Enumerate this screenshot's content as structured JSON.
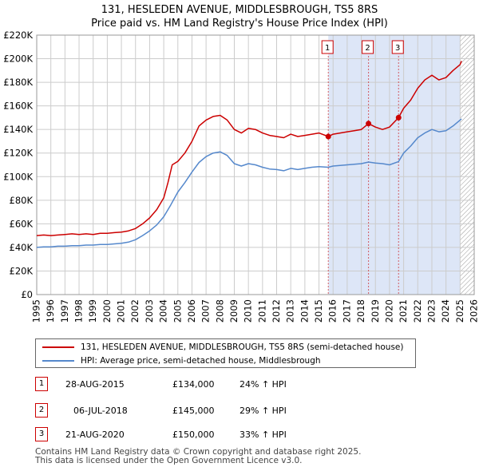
{
  "title_line1": "131, HESLEDEN AVENUE, MIDDLESBROUGH, TS5 8RS",
  "title_line2": "Price paid vs. HM Land Registry's House Price Index (HPI)",
  "colors": {
    "property": "#cc0000",
    "hpi": "#5588cc",
    "shade": "#dde6f7",
    "grid": "#cccccc"
  },
  "legend": {
    "property_label": "131, HESLEDEN AVENUE, MIDDLESBROUGH, TS5 8RS (semi-detached house)",
    "hpi_label": "HPI: Average price, semi-detached house, Middlesbrough"
  },
  "sales": [
    {
      "num": "1",
      "date": "28-AUG-2015",
      "price": "£134,000",
      "hpi_change": "24% ↑ HPI"
    },
    {
      "num": "2",
      "date": "06-JUL-2018",
      "price": "£145,000",
      "hpi_change": "29% ↑ HPI"
    },
    {
      "num": "3",
      "date": "21-AUG-2020",
      "price": "£150,000",
      "hpi_change": "33% ↑ HPI"
    }
  ],
  "footer_line1": "Contains HM Land Registry data © Crown copyright and database right 2025.",
  "footer_line2": "This data is licensed under the Open Government Licence v3.0.",
  "chart_data": {
    "type": "line",
    "title": "Price paid vs. HM Land Registry's House Price Index (HPI)",
    "xlim": [
      1995,
      2026
    ],
    "ylim": [
      0,
      220000
    ],
    "x_ticks": [
      "1995",
      "1996",
      "1997",
      "1998",
      "1999",
      "2000",
      "2001",
      "2002",
      "2003",
      "2004",
      "2005",
      "2006",
      "2007",
      "2008",
      "2009",
      "2010",
      "2011",
      "2012",
      "2013",
      "2014",
      "2015",
      "2016",
      "2017",
      "2018",
      "2019",
      "2020",
      "2021",
      "2022",
      "2023",
      "2024",
      "2025",
      "2026"
    ],
    "y_ticks": [
      {
        "value": 0,
        "label": "£0"
      },
      {
        "value": 20000,
        "label": "£20K"
      },
      {
        "value": 40000,
        "label": "£40K"
      },
      {
        "value": 60000,
        "label": "£60K"
      },
      {
        "value": 80000,
        "label": "£80K"
      },
      {
        "value": 100000,
        "label": "£100K"
      },
      {
        "value": 120000,
        "label": "£120K"
      },
      {
        "value": 140000,
        "label": "£140K"
      },
      {
        "value": 160000,
        "label": "£160K"
      },
      {
        "value": 180000,
        "label": "£180K"
      },
      {
        "value": 200000,
        "label": "£200K"
      },
      {
        "value": 220000,
        "label": "£220K"
      }
    ],
    "shaded_from": 2015.66,
    "hatched_from": 2025.0,
    "sale_markers": [
      {
        "num": "1",
        "x": 2015.66,
        "y": 134000
      },
      {
        "num": "2",
        "x": 2018.51,
        "y": 145000
      },
      {
        "num": "3",
        "x": 2020.64,
        "y": 150000
      }
    ],
    "series": [
      {
        "name": "131, HESLEDEN AVENUE, MIDDLESBROUGH, TS5 8RS (semi-detached house)",
        "color": "#cc0000",
        "points": [
          [
            1995.0,
            50000
          ],
          [
            1995.5,
            50500
          ],
          [
            1996.0,
            50000
          ],
          [
            1996.5,
            50500
          ],
          [
            1997.0,
            51000
          ],
          [
            1997.5,
            51500
          ],
          [
            1998.0,
            51000
          ],
          [
            1998.5,
            51500
          ],
          [
            1999.0,
            51000
          ],
          [
            1999.5,
            52000
          ],
          [
            2000.0,
            52000
          ],
          [
            2000.5,
            52500
          ],
          [
            2001.0,
            53000
          ],
          [
            2001.5,
            54000
          ],
          [
            2002.0,
            56000
          ],
          [
            2002.5,
            60000
          ],
          [
            2003.0,
            65000
          ],
          [
            2003.5,
            72000
          ],
          [
            2004.0,
            82000
          ],
          [
            2004.3,
            95000
          ],
          [
            2004.6,
            110000
          ],
          [
            2005.0,
            113000
          ],
          [
            2005.5,
            120000
          ],
          [
            2006.0,
            130000
          ],
          [
            2006.5,
            143000
          ],
          [
            2007.0,
            148000
          ],
          [
            2007.5,
            151000
          ],
          [
            2008.0,
            152000
          ],
          [
            2008.5,
            148000
          ],
          [
            2009.0,
            140000
          ],
          [
            2009.5,
            137000
          ],
          [
            2010.0,
            141000
          ],
          [
            2010.5,
            140000
          ],
          [
            2011.0,
            137000
          ],
          [
            2011.5,
            135000
          ],
          [
            2012.0,
            134000
          ],
          [
            2012.5,
            133000
          ],
          [
            2013.0,
            136000
          ],
          [
            2013.5,
            134000
          ],
          [
            2014.0,
            135000
          ],
          [
            2014.5,
            136000
          ],
          [
            2015.0,
            137000
          ],
          [
            2015.66,
            134000
          ],
          [
            2016.0,
            136000
          ],
          [
            2016.5,
            137000
          ],
          [
            2017.0,
            138000
          ],
          [
            2017.5,
            139000
          ],
          [
            2018.0,
            140000
          ],
          [
            2018.51,
            145000
          ],
          [
            2019.0,
            142000
          ],
          [
            2019.5,
            140000
          ],
          [
            2020.0,
            142000
          ],
          [
            2020.64,
            150000
          ],
          [
            2021.0,
            158000
          ],
          [
            2021.5,
            165000
          ],
          [
            2022.0,
            175000
          ],
          [
            2022.5,
            182000
          ],
          [
            2023.0,
            186000
          ],
          [
            2023.5,
            182000
          ],
          [
            2024.0,
            184000
          ],
          [
            2024.5,
            190000
          ],
          [
            2025.0,
            195000
          ],
          [
            2025.1,
            198000
          ]
        ]
      },
      {
        "name": "HPI: Average price, semi-detached house, Middlesbrough",
        "color": "#5588cc",
        "points": [
          [
            1995.0,
            40000
          ],
          [
            1995.5,
            40500
          ],
          [
            1996.0,
            40500
          ],
          [
            1996.5,
            41000
          ],
          [
            1997.0,
            41000
          ],
          [
            1997.5,
            41500
          ],
          [
            1998.0,
            41500
          ],
          [
            1998.5,
            42000
          ],
          [
            1999.0,
            42000
          ],
          [
            1999.5,
            42500
          ],
          [
            2000.0,
            42500
          ],
          [
            2000.5,
            43000
          ],
          [
            2001.0,
            43500
          ],
          [
            2001.5,
            44500
          ],
          [
            2002.0,
            46500
          ],
          [
            2002.5,
            50000
          ],
          [
            2003.0,
            54000
          ],
          [
            2003.5,
            59000
          ],
          [
            2004.0,
            66000
          ],
          [
            2004.5,
            76000
          ],
          [
            2005.0,
            87000
          ],
          [
            2005.5,
            95000
          ],
          [
            2006.0,
            104000
          ],
          [
            2006.5,
            112000
          ],
          [
            2007.0,
            117000
          ],
          [
            2007.5,
            120000
          ],
          [
            2008.0,
            121000
          ],
          [
            2008.5,
            118000
          ],
          [
            2009.0,
            111000
          ],
          [
            2009.5,
            109000
          ],
          [
            2010.0,
            111000
          ],
          [
            2010.5,
            110000
          ],
          [
            2011.0,
            108000
          ],
          [
            2011.5,
            106500
          ],
          [
            2012.0,
            106000
          ],
          [
            2012.5,
            105000
          ],
          [
            2013.0,
            107000
          ],
          [
            2013.5,
            106000
          ],
          [
            2014.0,
            107000
          ],
          [
            2014.5,
            108000
          ],
          [
            2015.0,
            108500
          ],
          [
            2015.66,
            108000
          ],
          [
            2016.0,
            109000
          ],
          [
            2016.5,
            109500
          ],
          [
            2017.0,
            110000
          ],
          [
            2017.5,
            110500
          ],
          [
            2018.0,
            111000
          ],
          [
            2018.51,
            112400
          ],
          [
            2019.0,
            111500
          ],
          [
            2019.5,
            111000
          ],
          [
            2020.0,
            110000
          ],
          [
            2020.64,
            112800
          ],
          [
            2021.0,
            120000
          ],
          [
            2021.5,
            126000
          ],
          [
            2022.0,
            133000
          ],
          [
            2022.5,
            137000
          ],
          [
            2023.0,
            140000
          ],
          [
            2023.5,
            138000
          ],
          [
            2024.0,
            139000
          ],
          [
            2024.5,
            143000
          ],
          [
            2025.0,
            148000
          ],
          [
            2025.1,
            149000
          ]
        ]
      }
    ]
  }
}
